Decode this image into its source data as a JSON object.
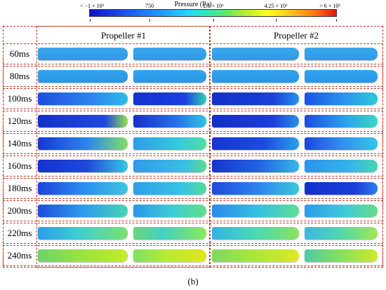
{
  "legend": {
    "title": "Pressure (Pa)",
    "ticks": [
      "< −1 × 10³",
      "750",
      "2.5 × 10³",
      "4.25 × 10³",
      "> 6 × 10³"
    ]
  },
  "columns": [
    "Propeller #1",
    "Propeller #2"
  ],
  "rows": [
    "60ms",
    "80ms",
    "100ms",
    "120ms",
    "140ms",
    "160ms",
    "180ms",
    "200ms",
    "220ms",
    "240ms"
  ],
  "caption": "(b)",
  "colors": {
    "frame": "#c0392b",
    "low": "#0a14c8",
    "mid": "#25c8f0",
    "high": "#e41414"
  },
  "blade_fills": [
    [
      "linear-gradient(#3aa6ee,#2f9ae8)",
      "linear-gradient(#3aa6ee,#2f9ae8)",
      "linear-gradient(#3aa8ee,#2f9ae8)",
      "linear-gradient(#3aa8ee,#2f9ae8)"
    ],
    [
      "linear-gradient(#33a3ee,#2a95e6)",
      "linear-gradient(#33a3ee,#2a95e6)",
      "linear-gradient(#33a3ee,#2a95e6)",
      "linear-gradient(#33a3ee,#2a95e6)"
    ],
    [
      "linear-gradient(90deg,#1e4ee0,#2e84f0 60%,#2fbce8)",
      "linear-gradient(90deg,#1432d0,#1a3ee0 70%,#36d0b4)",
      "linear-gradient(90deg,#1430c8,#1840d8 70%,#2b8ff0)",
      "linear-gradient(90deg,#1b52e2,#2a8ff0 50%,#2fc8d8)"
    ],
    [
      "linear-gradient(90deg,#1232c8,#1f4ae0 75%,#8fe24a)",
      "linear-gradient(90deg,#1530cc,#2672ea 60%,#2fc4e4)",
      "linear-gradient(90deg,#1230c8,#1a3ed8 70%,#2b90ea)",
      "linear-gradient(90deg,#1c4ce0,#2aa0ee 55%,#38d8c0)"
    ],
    [
      "linear-gradient(90deg,#1636d2,#2a86ee 55%,#7fe068)",
      "linear-gradient(90deg,#2e9ce8,#34c8e0 60%,#4fe0a0)",
      "linear-gradient(90deg,#1634d0,#1e4ae0 60%,#2aa0ee)",
      "linear-gradient(90deg,#1c46dc,#2f8ef0 50%,#36c6e4)"
    ],
    [
      "linear-gradient(90deg,#1432d0,#1f48dc 55%,#36c8e0)",
      "linear-gradient(90deg,#2e9ae8,#38c0e6 70%,#5adc90)",
      "linear-gradient(90deg,#1634cc,#2264e4 55%,#34b8e8)",
      "linear-gradient(90deg,#2c92ec,#32b4ea 60%,#46d6b0)"
    ],
    [
      "linear-gradient(90deg,#1c44d8,#2a8cf0 50%,#3ec6de)",
      "linear-gradient(90deg,#2f9ee8,#36c2e6 65%,#56dc9a)",
      "linear-gradient(90deg,#1e4adc,#2f8cf0 60%,#3cc8d8)",
      "linear-gradient(90deg,#1430cc,#1b3ed8 70%,#2a80ea)"
    ],
    [
      "linear-gradient(90deg,#1c4ed8,#2e9aee 50%,#48d4b0)",
      "linear-gradient(90deg,#2a96ea,#3ccfd4 55%,#64de88)",
      "linear-gradient(90deg,#2a88ee,#36c2e0 55%,#5ede90)",
      "linear-gradient(90deg,#2e9aea,#3ecad8 55%,#66de86)"
    ],
    [
      "linear-gradient(90deg,#2c9cea,#3ccfd2 45%,#7ce070)",
      "linear-gradient(90deg,#6ad67a,#44d0c4 40%,#8ce85a)",
      "linear-gradient(90deg,#34b4e6,#4ad8b4 50%,#8ae45c)",
      "linear-gradient(90deg,#3ab8e2,#52d8ac 50%,#a0e850)"
    ],
    [
      "linear-gradient(90deg,#6cd46a,#98e240 45%,#c4ec2c)",
      "linear-gradient(90deg,#7ee060,#b6ea34 45%,#e4e41e)",
      "linear-gradient(90deg,#7ed862,#a6e63c 45%,#dce824)",
      "linear-gradient(90deg,#4ccaa8,#80e060 45%,#d2e82a)"
    ]
  ]
}
